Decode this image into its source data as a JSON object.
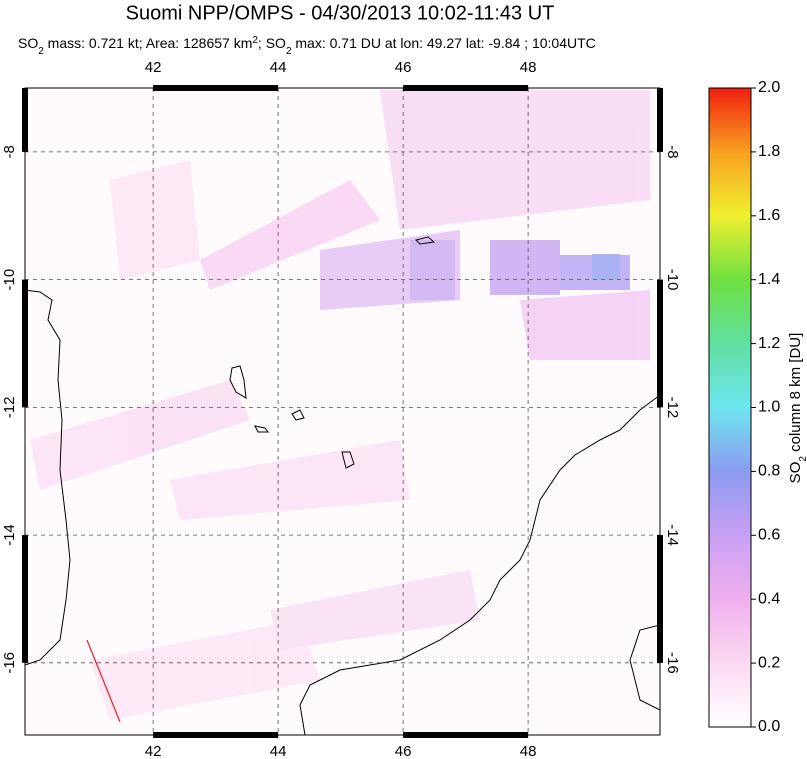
{
  "header": {
    "title": "Suomi NPP/OMPS - 04/30/2013 10:02-11:43 UT",
    "subtitle": [
      "SO",
      "2",
      " mass: 0.721 kt; Area: 128657 km",
      "2",
      "; SO",
      "2",
      " max: 0.71 DU at lon: 49.27 lat: -9.84 ; 10:04UTC"
    ]
  },
  "map": {
    "lonlim": [
      39.95,
      50.11
    ],
    "latlim": [
      -7.0,
      -17.13
    ],
    "lon_ticks": [
      42,
      44,
      46,
      48
    ],
    "lat_ticks": [
      -8,
      -10,
      -12,
      -14,
      -16
    ]
  },
  "colorbar": {
    "lim": [
      0,
      2
    ],
    "ticks": [
      {
        "value": 0,
        "label": "0.0"
      },
      {
        "value": 0.2,
        "label": "0.2"
      },
      {
        "value": 0.4,
        "label": "0.4"
      },
      {
        "value": 0.6,
        "label": "0.6"
      },
      {
        "value": 0.8,
        "label": "0.8"
      },
      {
        "value": 1,
        "label": "1.0"
      },
      {
        "value": 1.2,
        "label": "1.2"
      },
      {
        "value": 1.4,
        "label": "1.4"
      },
      {
        "value": 1.6,
        "label": "1.6"
      },
      {
        "value": 1.8,
        "label": "1.8"
      },
      {
        "value": 2,
        "label": "2.0"
      }
    ],
    "label": [
      "SO",
      "2",
      " column 8 km [DU]"
    ]
  }
}
